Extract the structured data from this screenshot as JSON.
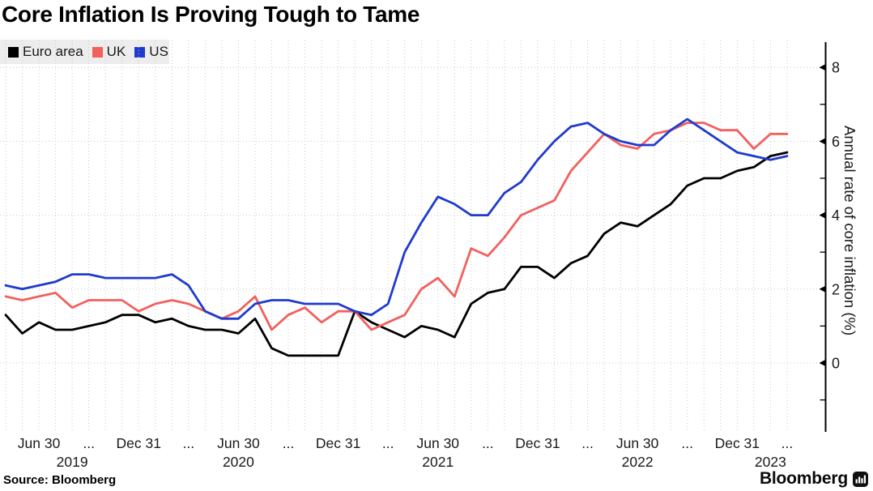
{
  "title": "Core Inflation Is Proving Tough to Tame",
  "source": "Source: Bloomberg",
  "brand": "Bloomberg",
  "colors": {
    "euro_area": "#000000",
    "uk": "#f2605d",
    "us": "#1f3bcd",
    "grid": "#c9c9c9",
    "axis": "#000000",
    "text": "#1a1a1a",
    "legend_bg": "#ededed"
  },
  "legend": [
    {
      "label": "Euro area",
      "color": "#000000"
    },
    {
      "label": "UK",
      "color": "#f2605d"
    },
    {
      "label": "US",
      "color": "#1f3bcd"
    }
  ],
  "y_axis": {
    "title": "Annual rate of core inflation (%)",
    "major_ticks": [
      8,
      6,
      4,
      2,
      0
    ],
    "minor_ticks": [
      7,
      5,
      3,
      1,
      -1
    ],
    "range": [
      -1.9,
      8.7
    ]
  },
  "x_axis": {
    "ticks": [
      {
        "m": 2,
        "label": "Jun 30"
      },
      {
        "m": 5,
        "label": "..."
      },
      {
        "m": 8,
        "label": "Dec 31"
      },
      {
        "m": 11,
        "label": "..."
      },
      {
        "m": 14,
        "label": "Jun 30"
      },
      {
        "m": 17,
        "label": "..."
      },
      {
        "m": 20,
        "label": "Dec 31"
      },
      {
        "m": 23,
        "label": "..."
      },
      {
        "m": 26,
        "label": "Jun 30"
      },
      {
        "m": 29,
        "label": "..."
      },
      {
        "m": 32,
        "label": "Dec 31"
      },
      {
        "m": 35,
        "label": "..."
      },
      {
        "m": 38,
        "label": "Jun 30"
      },
      {
        "m": 41,
        "label": "..."
      },
      {
        "m": 44,
        "label": "Dec 31"
      },
      {
        "m": 47,
        "label": "..."
      }
    ],
    "years": [
      {
        "m": 4,
        "label": "2019"
      },
      {
        "m": 14,
        "label": "2020"
      },
      {
        "m": 26,
        "label": "2021"
      },
      {
        "m": 38,
        "label": "2022"
      },
      {
        "m": 46,
        "label": "2023"
      }
    ]
  },
  "chart_data": {
    "type": "line",
    "frequency": "monthly",
    "x_start": "2019-04",
    "x_end": "2023-03",
    "title": "Core Inflation Is Proving Tough to Tame",
    "ylabel": "Annual rate of core inflation (%)",
    "ylim": [
      -1.9,
      8.7
    ],
    "grid": true,
    "legend_position": "top-left",
    "series": [
      {
        "name": "Euro area",
        "color": "#000000",
        "values": [
          1.3,
          0.8,
          1.1,
          0.9,
          0.9,
          1.0,
          1.1,
          1.3,
          1.3,
          1.1,
          1.2,
          1.0,
          0.9,
          0.9,
          0.8,
          1.2,
          0.4,
          0.2,
          0.2,
          0.2,
          0.2,
          1.4,
          1.1,
          0.9,
          0.7,
          1.0,
          0.9,
          0.7,
          1.6,
          1.9,
          2.0,
          2.6,
          2.6,
          2.3,
          2.7,
          2.9,
          3.5,
          3.8,
          3.7,
          4.0,
          4.3,
          4.8,
          5.0,
          5.0,
          5.2,
          5.3,
          5.6,
          5.7
        ]
      },
      {
        "name": "UK",
        "color": "#f2605d",
        "values": [
          1.8,
          1.7,
          1.8,
          1.9,
          1.5,
          1.7,
          1.7,
          1.7,
          1.4,
          1.6,
          1.7,
          1.6,
          1.4,
          1.2,
          1.4,
          1.8,
          0.9,
          1.3,
          1.5,
          1.1,
          1.4,
          1.4,
          0.9,
          1.1,
          1.3,
          2.0,
          2.3,
          1.8,
          3.1,
          2.9,
          3.4,
          4.0,
          4.2,
          4.4,
          5.2,
          5.7,
          6.2,
          5.9,
          5.8,
          6.2,
          6.3,
          6.5,
          6.5,
          6.3,
          6.3,
          5.8,
          6.2,
          6.2
        ]
      },
      {
        "name": "US",
        "color": "#1f3bcd",
        "values": [
          2.1,
          2.0,
          2.1,
          2.2,
          2.4,
          2.4,
          2.3,
          2.3,
          2.3,
          2.3,
          2.4,
          2.1,
          1.4,
          1.2,
          1.2,
          1.6,
          1.7,
          1.7,
          1.6,
          1.6,
          1.6,
          1.4,
          1.3,
          1.6,
          3.0,
          3.8,
          4.5,
          4.3,
          4.0,
          4.0,
          4.6,
          4.9,
          5.5,
          6.0,
          6.4,
          6.5,
          6.2,
          6.0,
          5.9,
          5.9,
          6.3,
          6.6,
          6.3,
          6.0,
          5.7,
          5.6,
          5.5,
          5.6
        ]
      }
    ]
  }
}
